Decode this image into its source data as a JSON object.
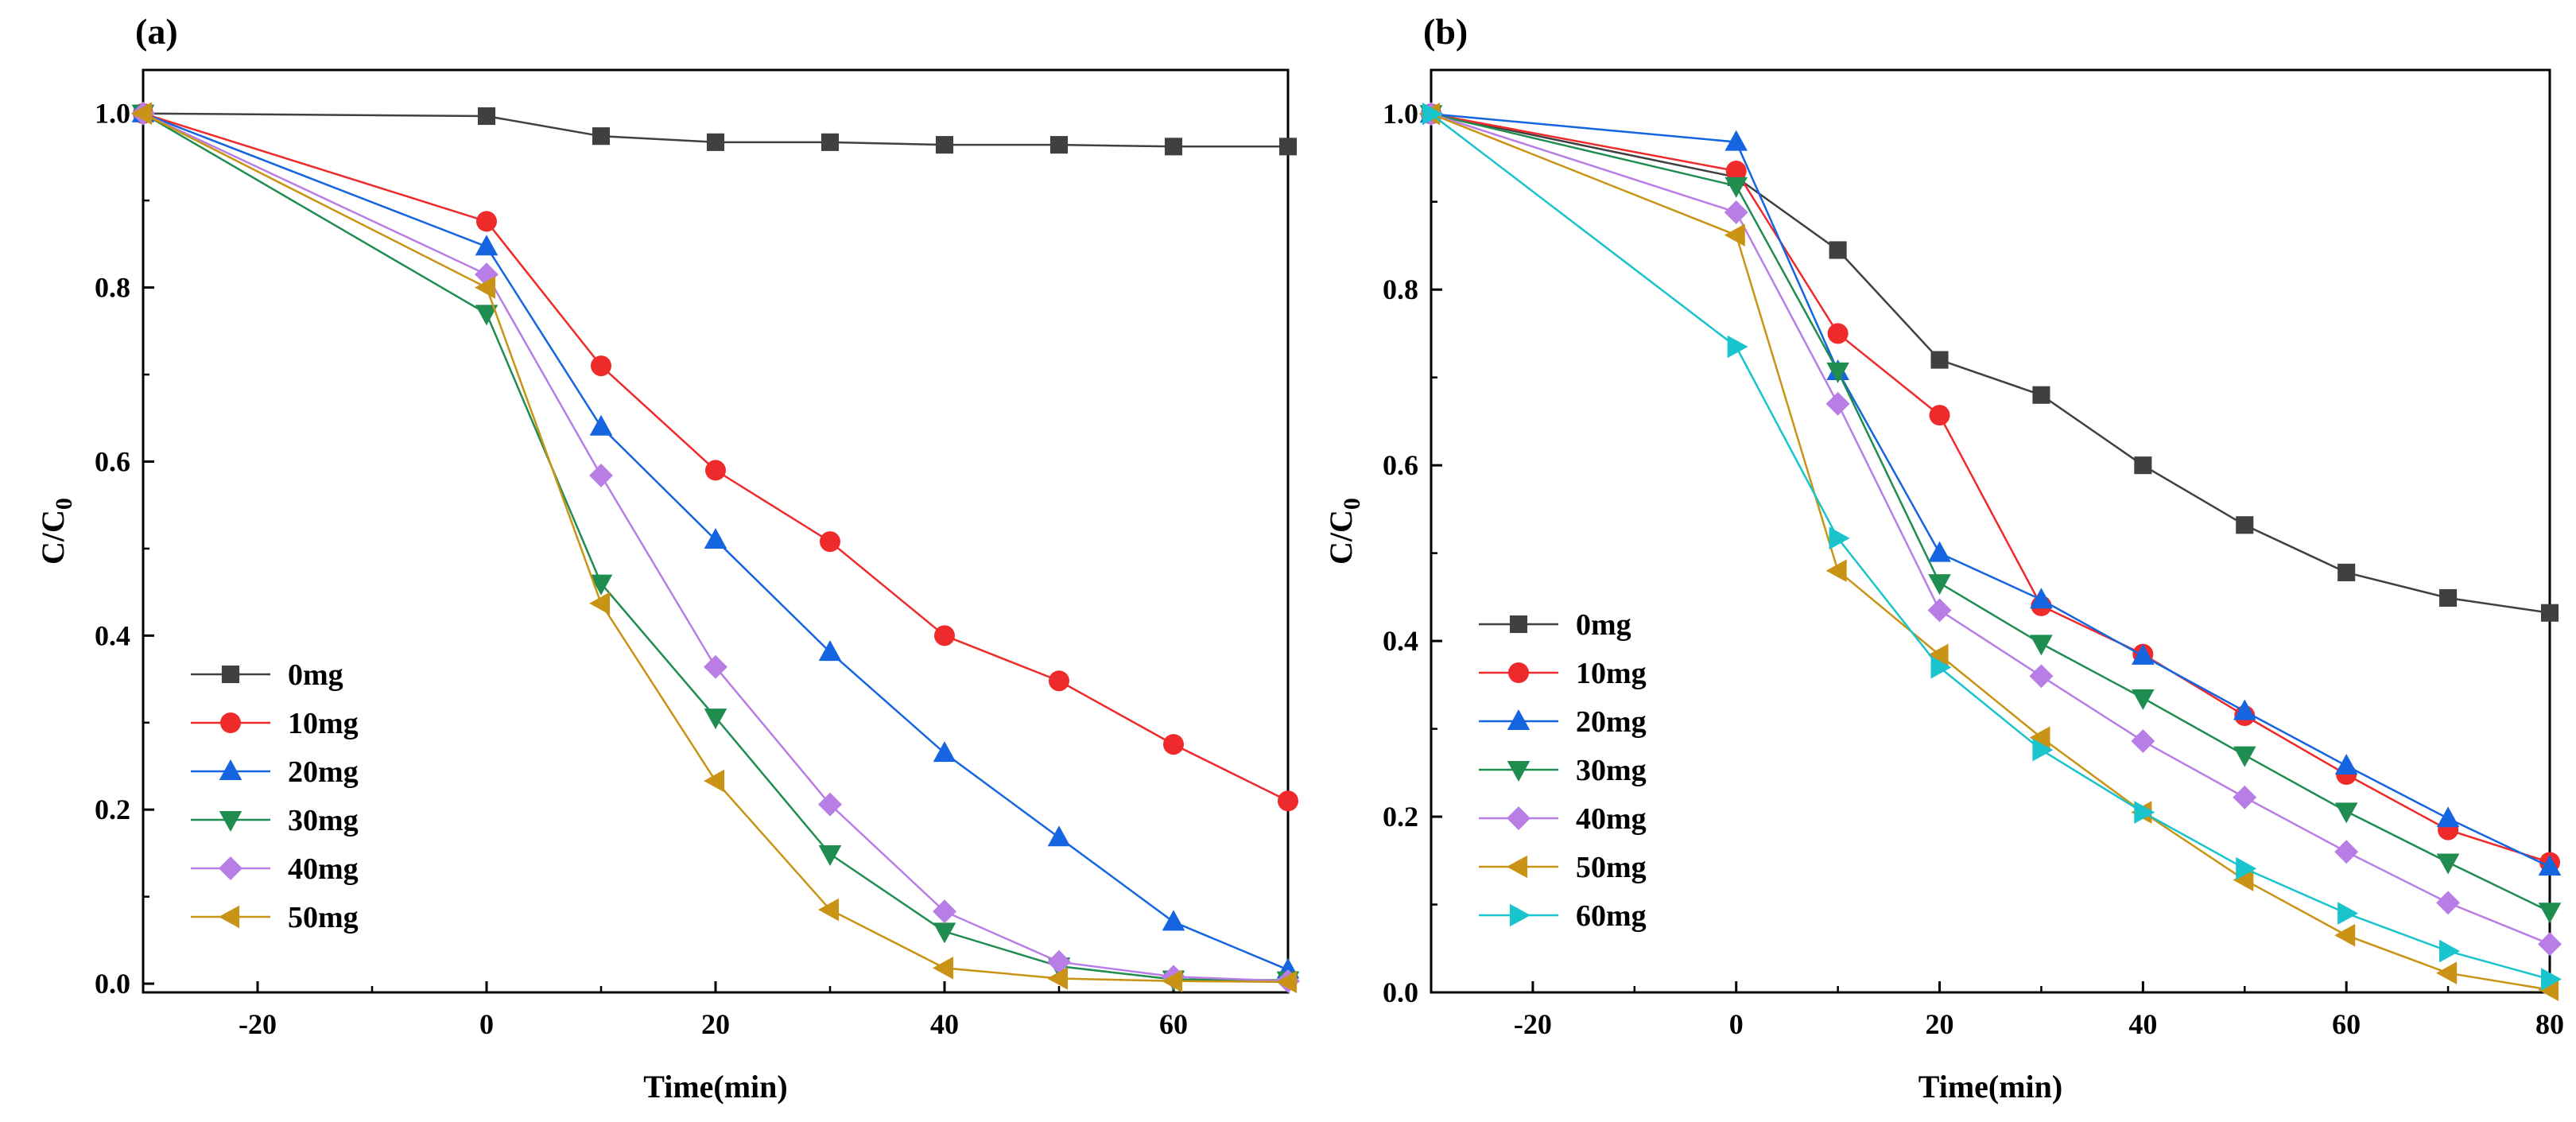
{
  "colors": {
    "0mg": "#404040",
    "10mg": "#ee2a2a",
    "20mg": "#1565e0",
    "30mg": "#1f8c50",
    "40mg": "#b87ee6",
    "50mg": "#c99315",
    "60mg": "#19c4cc"
  },
  "chart_data": [
    {
      "type": "line",
      "panel_label": "(a)",
      "xlabel": "Time(min)",
      "ylabel": "C/C",
      "ylabel_sub": "0",
      "xlim": [
        -30,
        70
      ],
      "ylim": [
        -0.01,
        1.05
      ],
      "xticks": [
        -20,
        0,
        20,
        40,
        60
      ],
      "xtick_labels": [
        "-20",
        "0",
        "20",
        "40",
        "60"
      ],
      "yticks": [
        0.0,
        0.2,
        0.4,
        0.6,
        0.8,
        1.0
      ],
      "ytick_labels": [
        "0.0",
        "0.2",
        "0.4",
        "0.6",
        "0.8",
        "1.0"
      ],
      "legend_position": "bottom-left",
      "x": [
        -30,
        0,
        10,
        20,
        30,
        40,
        50,
        60,
        70
      ],
      "series": [
        {
          "name": "0mg",
          "color_key": "0mg",
          "marker": "square",
          "values": [
            1.0,
            0.997,
            0.974,
            0.967,
            0.967,
            0.964,
            0.964,
            0.962,
            0.962
          ]
        },
        {
          "name": "10mg",
          "color_key": "10mg",
          "marker": "circle",
          "values": [
            1.0,
            0.876,
            0.71,
            0.59,
            0.508,
            0.4,
            0.348,
            0.275,
            0.21
          ]
        },
        {
          "name": "20mg",
          "color_key": "20mg",
          "marker": "triangle-up",
          "values": [
            1.0,
            0.847,
            0.64,
            0.51,
            0.381,
            0.265,
            0.168,
            0.071,
            0.016
          ]
        },
        {
          "name": "30mg",
          "color_key": "30mg",
          "marker": "triangle-down",
          "values": [
            1.0,
            0.77,
            0.46,
            0.306,
            0.149,
            0.06,
            0.02,
            0.005,
            0.004
          ]
        },
        {
          "name": "40mg",
          "color_key": "40mg",
          "marker": "diamond",
          "values": [
            1.0,
            0.815,
            0.584,
            0.364,
            0.206,
            0.083,
            0.025,
            0.008,
            0.003
          ]
        },
        {
          "name": "50mg",
          "color_key": "50mg",
          "marker": "triangle-left",
          "values": [
            1.0,
            0.8,
            0.437,
            0.233,
            0.085,
            0.018,
            0.006,
            0.003,
            0.002
          ]
        }
      ]
    },
    {
      "type": "line",
      "panel_label": "(b)",
      "xlabel": "Time(min)",
      "ylabel": "C/C",
      "ylabel_sub": "0",
      "xlim": [
        -30,
        80
      ],
      "ylim": [
        0.0,
        1.05
      ],
      "xticks": [
        -20,
        0,
        20,
        40,
        60,
        80
      ],
      "xtick_labels": [
        "-20",
        "0",
        "20",
        "40",
        "60",
        "80"
      ],
      "yticks": [
        0.0,
        0.2,
        0.4,
        0.6,
        0.8,
        1.0
      ],
      "ytick_labels": [
        "0.0",
        "0.2",
        "0.4",
        "0.6",
        "0.8",
        "1.0"
      ],
      "legend_position": "bottom-left",
      "x": [
        -30,
        0,
        10,
        20,
        30,
        40,
        50,
        60,
        70,
        80
      ],
      "series": [
        {
          "name": "0mg",
          "color_key": "0mg",
          "marker": "square",
          "values": [
            1.0,
            0.928,
            0.845,
            0.72,
            0.68,
            0.6,
            0.532,
            0.478,
            0.449,
            0.432
          ]
        },
        {
          "name": "10mg",
          "color_key": "10mg",
          "marker": "circle",
          "values": [
            1.0,
            0.935,
            0.75,
            0.657,
            0.44,
            0.385,
            0.315,
            0.248,
            0.185,
            0.148
          ]
        },
        {
          "name": "20mg",
          "color_key": "20mg",
          "marker": "triangle-up",
          "values": [
            1.0,
            0.968,
            0.707,
            0.5,
            0.447,
            0.383,
            0.32,
            0.258,
            0.198,
            0.143
          ]
        },
        {
          "name": "30mg",
          "color_key": "30mg",
          "marker": "triangle-down",
          "values": [
            1.0,
            0.918,
            0.707,
            0.466,
            0.397,
            0.335,
            0.27,
            0.206,
            0.148,
            0.092
          ]
        },
        {
          "name": "40mg",
          "color_key": "40mg",
          "marker": "diamond",
          "values": [
            1.0,
            0.888,
            0.67,
            0.435,
            0.36,
            0.286,
            0.222,
            0.16,
            0.102,
            0.055
          ]
        },
        {
          "name": "50mg",
          "color_key": "50mg",
          "marker": "triangle-left",
          "values": [
            1.0,
            0.862,
            0.48,
            0.384,
            0.29,
            0.205,
            0.128,
            0.065,
            0.022,
            0.003
          ]
        },
        {
          "name": "60mg",
          "color_key": "60mg",
          "marker": "triangle-right",
          "values": [
            1.0,
            0.735,
            0.517,
            0.37,
            0.276,
            0.205,
            0.141,
            0.09,
            0.047,
            0.015
          ]
        }
      ]
    }
  ]
}
